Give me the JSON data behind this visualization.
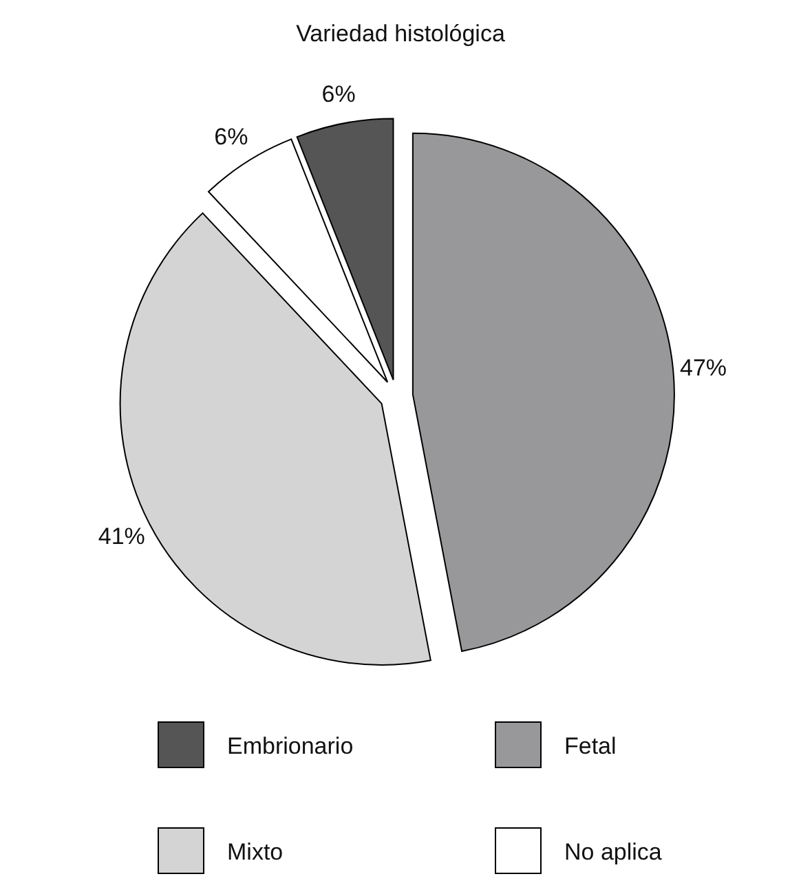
{
  "chart_data": {
    "type": "pie",
    "title": "Variedad histológica",
    "categories": [
      "Embrionario",
      "Fetal",
      "Mixto",
      "No aplica"
    ],
    "values": [
      6,
      47,
      41,
      6
    ],
    "value_labels": [
      "6%",
      "47%",
      "41%",
      "6%"
    ],
    "colors": [
      "#555555",
      "#98989b",
      "#d4d4d4",
      "#ffffff"
    ],
    "legend": "bottom"
  }
}
